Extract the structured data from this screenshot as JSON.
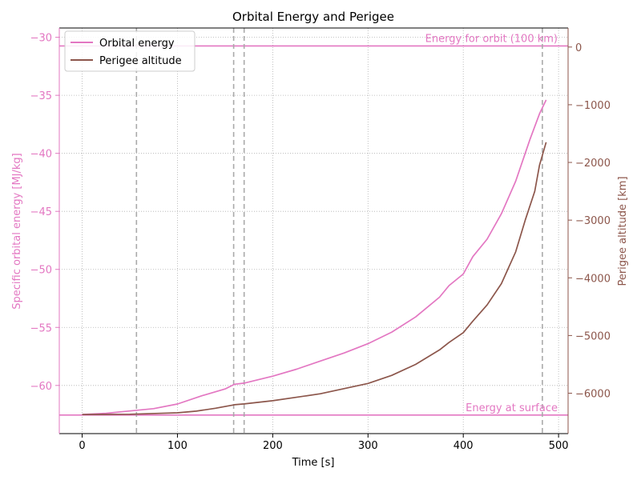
{
  "chart_data": {
    "type": "line",
    "title": "Orbital Energy and Perigee",
    "xlabel": "Time [s]",
    "ylabel_left": "Specific orbital energy [MJ/kg]",
    "ylabel_right": "Perigee altitude [km]",
    "xlim": [
      -24,
      510
    ],
    "ylim_left": [
      -64.15,
      -29.2
    ],
    "ylim_right": [
      -6700,
      330
    ],
    "x_ticks": [
      0,
      100,
      200,
      300,
      400,
      500
    ],
    "x_tick_labels": [
      "0",
      "100",
      "200",
      "300",
      "400",
      "500"
    ],
    "y_left_ticks": [
      -30,
      -35,
      -40,
      -45,
      -50,
      -55,
      -60
    ],
    "y_left_tick_labels": [
      "−30",
      "−35",
      "−40",
      "−45",
      "−50",
      "−55",
      "−60"
    ],
    "y_right_ticks": [
      0,
      -1000,
      -2000,
      -3000,
      -4000,
      -5000,
      -6000
    ],
    "y_right_tick_labels": [
      "0",
      "−1000",
      "−2000",
      "−3000",
      "−4000",
      "−5000",
      "−6000"
    ],
    "grid": true,
    "legend_position": "top-left",
    "colors": {
      "energy": "#e377c2",
      "perigee": "#8c564b",
      "event_lines": "#aaaaaa"
    },
    "event_lines_x": [
      57,
      159,
      170,
      483
    ],
    "reference_lines": [
      {
        "label": "Energy for orbit (100 km)",
        "y": -30.75
      },
      {
        "label": "Energy at surface",
        "y": -62.55
      }
    ],
    "series": [
      {
        "name": "Orbital energy",
        "axis": "left",
        "x": [
          0,
          25,
          50,
          75,
          100,
          125,
          150,
          160,
          170,
          200,
          225,
          250,
          275,
          300,
          325,
          350,
          375,
          385,
          400,
          410,
          425,
          440,
          455,
          470,
          480,
          487
        ],
        "values": [
          -62.5,
          -62.4,
          -62.2,
          -62.0,
          -61.6,
          -60.9,
          -60.3,
          -59.9,
          -59.8,
          -59.2,
          -58.6,
          -57.9,
          -57.2,
          -56.4,
          -55.4,
          -54.1,
          -52.4,
          -51.4,
          -50.4,
          -48.9,
          -47.4,
          -45.2,
          -42.4,
          -38.8,
          -36.6,
          -35.4
        ]
      },
      {
        "name": "Perigee altitude",
        "axis": "right",
        "x": [
          0,
          50,
          100,
          120,
          140,
          160,
          170,
          200,
          250,
          300,
          325,
          350,
          375,
          385,
          400,
          410,
          425,
          440,
          455,
          465,
          475,
          480,
          487
        ],
        "values": [
          -6370,
          -6365,
          -6340,
          -6310,
          -6260,
          -6200,
          -6185,
          -6130,
          -6010,
          -5830,
          -5690,
          -5500,
          -5250,
          -5120,
          -4950,
          -4750,
          -4470,
          -4100,
          -3550,
          -3000,
          -2500,
          -2050,
          -1650
        ]
      }
    ]
  }
}
